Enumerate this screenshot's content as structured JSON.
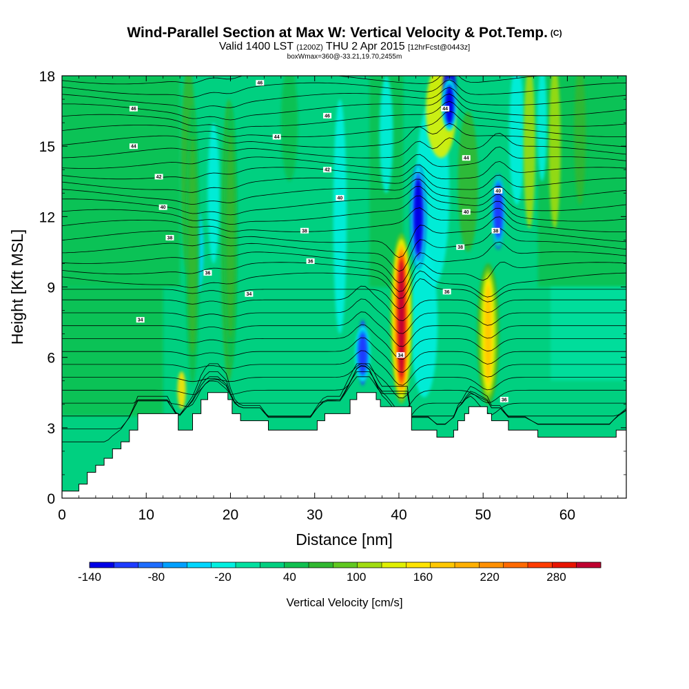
{
  "chart_data": {
    "type": "heatmap",
    "title": "Wind-Parallel Section at Max W: Vertical Velocity & Pot.Temp.",
    "copyright": "(C)",
    "subtitle": {
      "valid_prefix": "Valid 1400 LST",
      "utc": "(1200Z)",
      "date": "THU 2 Apr 2015",
      "forecast": "[12hrFcst@0443z]"
    },
    "box_info": "boxWmax=360@-33.21,19.70,2455m",
    "xlabel": "Distance [nm]",
    "ylabel": "Height [Kft MSL]",
    "xlim": [
      0,
      67
    ],
    "ylim": [
      0,
      18
    ],
    "xticks": [
      "0",
      "10",
      "20",
      "30",
      "40",
      "50",
      "60"
    ],
    "yticks": [
      "0",
      "3",
      "6",
      "9",
      "12",
      "15",
      "18"
    ],
    "colorbar": {
      "title": "Vertical Velocity [cm/s]",
      "range": [
        -140,
        320
      ],
      "tick_labels": [
        "-140",
        "-80",
        "-20",
        "40",
        "100",
        "160",
        "220",
        "280"
      ],
      "colors": [
        "#0000e6",
        "#1e3cff",
        "#1e6eff",
        "#00a0ff",
        "#00d7ff",
        "#00f0e0",
        "#00e0a0",
        "#00d080",
        "#10c050",
        "#30b830",
        "#60c820",
        "#a0dc10",
        "#e0f000",
        "#ffe400",
        "#ffc800",
        "#ffb000",
        "#ff9000",
        "#ff6a00",
        "#ff3c00",
        "#e81400",
        "#c00030"
      ]
    },
    "updrafts": [
      {
        "x": 40.3,
        "z_bottom": 3.8,
        "z_top": 11.5,
        "peak_w": 300
      },
      {
        "x": 50.6,
        "z_bottom": 3.8,
        "z_top": 10.2,
        "peak_w": 180
      },
      {
        "x": 15.5,
        "z_bottom": 3.6,
        "z_top": 18.0,
        "peak_w": 60
      },
      {
        "x": 20.0,
        "z_bottom": 4.4,
        "z_top": 18.0,
        "peak_w": 60
      }
    ],
    "downdrafts": [
      {
        "x": 42.3,
        "z_bottom": 9.5,
        "z_top": 14.5,
        "peak_w": -140
      },
      {
        "x": 46.0,
        "z_bottom": 15.5,
        "z_top": 18.0,
        "peak_w": -120
      },
      {
        "x": 51.8,
        "z_bottom": 10.5,
        "z_top": 14.0,
        "peak_w": -100
      },
      {
        "x": 35.7,
        "z_bottom": 4.8,
        "z_top": 7.5,
        "peak_w": -110
      }
    ],
    "terrain": {
      "x": [
        0,
        2,
        3,
        4,
        5,
        6,
        7,
        8,
        9,
        12.5,
        13.8,
        15.5,
        16.5,
        17.3,
        17.8,
        18.5,
        19.7,
        20.2,
        21.2,
        23.5,
        24.5,
        29.5,
        30.3,
        31.2,
        33.0,
        34.2,
        35.0,
        36.5,
        37.3,
        37.8,
        41.0,
        41.5,
        43.5,
        44.5,
        45.5,
        46.5,
        47.0,
        47.8,
        48.3,
        48.7,
        50.5,
        51.0,
        52.0,
        53.0,
        55.0,
        56.5,
        57.0,
        65.0,
        65.8,
        67
      ],
      "z": [
        0.3,
        0.6,
        1.1,
        1.4,
        1.7,
        2.1,
        2.4,
        2.9,
        3.6,
        3.6,
        2.9,
        3.6,
        4.2,
        4.5,
        4.5,
        4.5,
        4.2,
        3.6,
        3.3,
        3.3,
        2.9,
        2.9,
        3.3,
        3.6,
        3.6,
        4.2,
        4.5,
        4.5,
        4.2,
        3.9,
        3.9,
        2.9,
        2.9,
        2.6,
        2.6,
        2.9,
        3.3,
        3.6,
        3.9,
        3.9,
        3.6,
        3.3,
        3.3,
        2.9,
        2.9,
        2.6,
        2.6,
        2.6,
        2.9,
        3.2
      ]
    },
    "theta_contours": {
      "interval_k": 2,
      "labels": [
        {
          "text": "46",
          "x": 23.5,
          "z": 17.7
        },
        {
          "text": "46",
          "x": 8.5,
          "z": 16.6
        },
        {
          "text": "46",
          "x": 31.5,
          "z": 16.3
        },
        {
          "text": "44",
          "x": 45.5,
          "z": 16.6
        },
        {
          "text": "44",
          "x": 25.5,
          "z": 15.4
        },
        {
          "text": "44",
          "x": 8.5,
          "z": 15.0
        },
        {
          "text": "44",
          "x": 48.0,
          "z": 14.5
        },
        {
          "text": "42",
          "x": 11.5,
          "z": 13.7
        },
        {
          "text": "42",
          "x": 31.5,
          "z": 14.0
        },
        {
          "text": "40",
          "x": 12.0,
          "z": 12.4
        },
        {
          "text": "40",
          "x": 33.0,
          "z": 12.8
        },
        {
          "text": "40",
          "x": 51.8,
          "z": 13.1
        },
        {
          "text": "40",
          "x": 48.0,
          "z": 12.2
        },
        {
          "text": "38",
          "x": 12.8,
          "z": 11.1
        },
        {
          "text": "38",
          "x": 28.8,
          "z": 11.4
        },
        {
          "text": "38",
          "x": 51.5,
          "z": 11.4
        },
        {
          "text": "38",
          "x": 47.3,
          "z": 10.7
        },
        {
          "text": "36",
          "x": 29.5,
          "z": 10.1
        },
        {
          "text": "36",
          "x": 17.3,
          "z": 9.6
        },
        {
          "text": "36",
          "x": 45.7,
          "z": 8.8
        },
        {
          "text": "34",
          "x": 22.2,
          "z": 8.7
        },
        {
          "text": "34",
          "x": 9.3,
          "z": 7.6
        },
        {
          "text": "34",
          "x": 40.2,
          "z": 6.1
        },
        {
          "text": "36",
          "x": 52.5,
          "z": 4.2
        }
      ]
    }
  }
}
